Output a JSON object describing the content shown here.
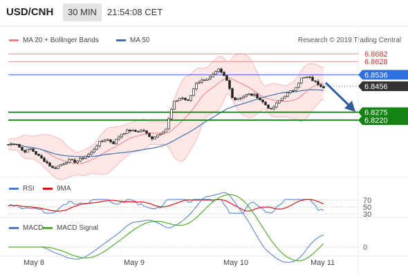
{
  "header": {
    "symbol": "USD/CNH",
    "timeframe": "30 MIN",
    "time": "21:54:08 CET"
  },
  "legend": {
    "bollinger": "MA 20 + Bollinger Bands",
    "ma50": "MA 50",
    "rsi": "RSI",
    "rsi_ma": "9MA",
    "macd": "MACD",
    "macd_signal": "MACD Signal"
  },
  "credit": "Research © 2019 Trading Central",
  "colors": {
    "bollinger": "#f08080",
    "ma50": "#3d6fb0",
    "resistance": "#e8898b",
    "pivot": "#2f6fe0",
    "support": "#1e8a1e",
    "current": "#333333",
    "arrow": "#2e5b9a"
  },
  "levels": {
    "r2": "6.8682",
    "r1": "6.8628",
    "pivot": "6.8536",
    "current": "6.8456",
    "s1": "6.8275",
    "s2": "6.8220"
  },
  "rsi_axis": [
    "70",
    "50",
    "30"
  ],
  "macd_axis": [
    "0"
  ],
  "dates": [
    "May 8",
    "May 9",
    "May 10",
    "May 11"
  ],
  "chart_data": {
    "type": "candlestick",
    "y_range_visible": [
      6.78,
      6.875
    ],
    "levels": [
      6.8682,
      6.8628,
      6.8536,
      6.8456,
      6.8275,
      6.822
    ],
    "close_approx": [
      6.805,
      6.806,
      6.8,
      6.802,
      6.797,
      6.793,
      6.788,
      6.791,
      6.794,
      6.793,
      6.796,
      6.799,
      6.806,
      6.809,
      6.806,
      6.812,
      6.815,
      6.814,
      6.815,
      6.809,
      6.812,
      6.816,
      6.834,
      6.838,
      6.835,
      6.848,
      6.85,
      6.852,
      6.857,
      6.851,
      6.836,
      6.838,
      6.84,
      6.839,
      6.834,
      6.829,
      6.835,
      6.84,
      6.843,
      6.851,
      6.852,
      6.848,
      6.845
    ],
    "dates": [
      "May 8",
      "May 9",
      "May 10",
      "May 11"
    ]
  }
}
